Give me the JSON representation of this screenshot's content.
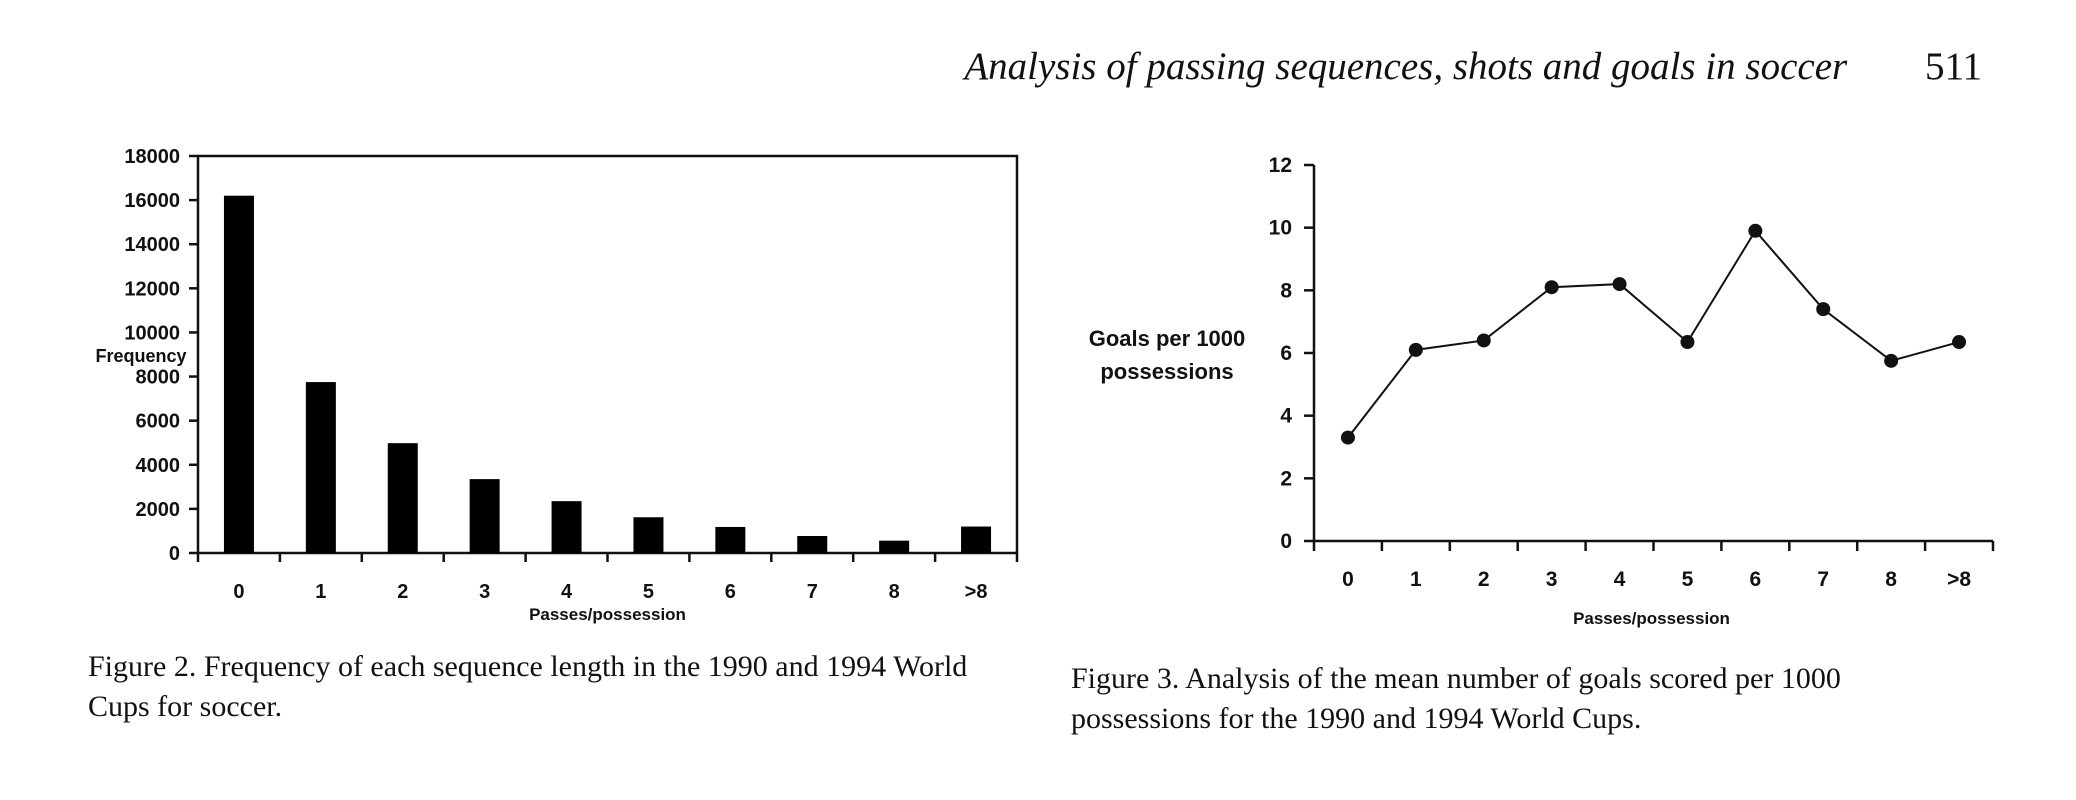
{
  "page": {
    "running_title": "Analysis of passing sequences, shots and goals in soccer",
    "page_number": "511"
  },
  "figures": [
    {
      "caption": "Figure 2. Frequency of each sequence length in the 1990 and 1994 World Cups for soccer."
    },
    {
      "caption": "Figure 3. Analysis of the mean number of goals scored per 1000 possessions for the 1990 and 1994 World Cups."
    }
  ],
  "chart_data": [
    {
      "type": "bar",
      "categories": [
        "0",
        "1",
        "2",
        "3",
        "4",
        "5",
        "6",
        "7",
        "8",
        ">8"
      ],
      "values": [
        16200,
        7750,
        4980,
        3350,
        2350,
        1620,
        1180,
        770,
        560,
        1200
      ],
      "xlabel": "Passes/possession",
      "ylabel": "Frequency",
      "ylim": [
        0,
        18000
      ],
      "yticks": [
        "0",
        "2000",
        "4000",
        "6000",
        "8000",
        "10000",
        "12000",
        "14000",
        "16000",
        "18000"
      ],
      "bar_color": "#000000",
      "grid": false,
      "legend": "none"
    },
    {
      "type": "line",
      "categories": [
        "0",
        "1",
        "2",
        "3",
        "4",
        "5",
        "6",
        "7",
        "8",
        ">8"
      ],
      "values": [
        3.3,
        6.1,
        6.4,
        8.1,
        8.2,
        6.35,
        9.9,
        7.4,
        5.75,
        6.35
      ],
      "xlabel": "Passes/possession",
      "ylabel": "Goals per 1000 possessions",
      "ylim": [
        0,
        12
      ],
      "yticks": [
        "0",
        "2",
        "4",
        "6",
        "8",
        "10",
        "12"
      ],
      "line_color": "#111111",
      "marker": "circle",
      "grid": false,
      "legend": "none"
    }
  ]
}
